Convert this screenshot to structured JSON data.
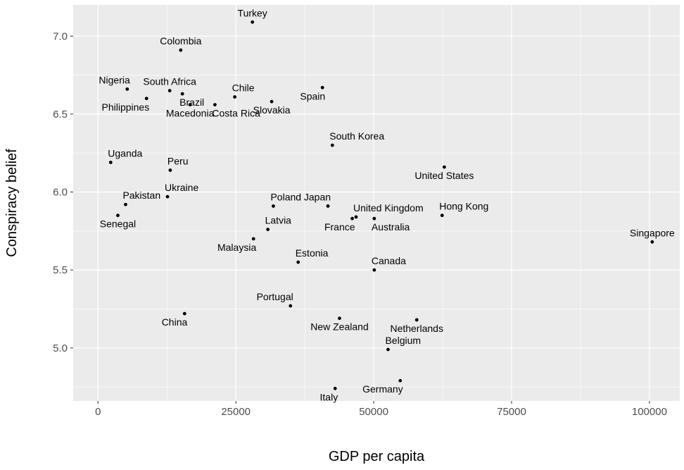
{
  "chart_data": {
    "type": "scatter",
    "title": "",
    "xlabel": "GDP per capita",
    "ylabel": "Conspiracy belief",
    "xlim": [
      -4500,
      105500
    ],
    "ylim": [
      4.66,
      7.2
    ],
    "x_ticks": [
      0,
      25000,
      50000,
      75000,
      100000
    ],
    "x_tick_labels": [
      "0",
      "25000",
      "50000",
      "75000",
      "100000"
    ],
    "y_ticks": [
      5.0,
      5.5,
      6.0,
      6.5,
      7.0
    ],
    "y_tick_labels": [
      "5.0",
      "5.5",
      "6.0",
      "6.5",
      "7.0"
    ],
    "grid": true,
    "background_color": "#ebebeb",
    "grid_color": "#ffffff",
    "point_color": "#000000",
    "points": [
      {
        "label": "Turkey",
        "x": 28000,
        "y": 7.09,
        "anchor": "above"
      },
      {
        "label": "Colombia",
        "x": 15000,
        "y": 6.91,
        "anchor": "above"
      },
      {
        "label": "Nigeria",
        "x": 5300,
        "y": 6.66,
        "anchor": "above-left"
      },
      {
        "label": "South Africa",
        "x": 13000,
        "y": 6.65,
        "anchor": "above"
      },
      {
        "label": "Brazil",
        "x": 15300,
        "y": 6.63,
        "anchor": "below-right"
      },
      {
        "label": "Philippines",
        "x": 8800,
        "y": 6.6,
        "anchor": "below-left"
      },
      {
        "label": "Macedonia",
        "x": 16700,
        "y": 6.56,
        "anchor": "below"
      },
      {
        "label": "Costa Rica",
        "x": 21200,
        "y": 6.56,
        "anchor": "below-right"
      },
      {
        "label": "Chile",
        "x": 24800,
        "y": 6.61,
        "anchor": "above-right"
      },
      {
        "label": "Slovakia",
        "x": 31500,
        "y": 6.58,
        "anchor": "below"
      },
      {
        "label": "Spain",
        "x": 40700,
        "y": 6.67,
        "anchor": "below-left"
      },
      {
        "label": "South Korea",
        "x": 42500,
        "y": 6.3,
        "anchor": "above-right"
      },
      {
        "label": "Uganda",
        "x": 2300,
        "y": 6.19,
        "anchor": "above-right"
      },
      {
        "label": "Peru",
        "x": 13100,
        "y": 6.14,
        "anchor": "above-right"
      },
      {
        "label": "United States",
        "x": 62800,
        "y": 6.16,
        "anchor": "below"
      },
      {
        "label": "Ukraine",
        "x": 12600,
        "y": 5.97,
        "anchor": "above-right"
      },
      {
        "label": "Pakistan",
        "x": 5000,
        "y": 5.92,
        "anchor": "above-right"
      },
      {
        "label": "Senegal",
        "x": 3600,
        "y": 5.85,
        "anchor": "below"
      },
      {
        "label": "Poland",
        "x": 31800,
        "y": 5.91,
        "anchor": "above-right"
      },
      {
        "label": "Japan",
        "x": 41700,
        "y": 5.91,
        "anchor": "above-left"
      },
      {
        "label": "United Kingdom",
        "x": 46800,
        "y": 5.84,
        "anchor": "above-right"
      },
      {
        "label": "France",
        "x": 46100,
        "y": 5.83,
        "anchor": "below-left"
      },
      {
        "label": "Australia",
        "x": 50100,
        "y": 5.83,
        "anchor": "below-right"
      },
      {
        "label": "Hong Kong",
        "x": 62400,
        "y": 5.85,
        "anchor": "above-right"
      },
      {
        "label": "Latvia",
        "x": 30800,
        "y": 5.76,
        "anchor": "above-right"
      },
      {
        "label": "Malaysia",
        "x": 28200,
        "y": 5.7,
        "anchor": "below-left"
      },
      {
        "label": "Singapore",
        "x": 100500,
        "y": 5.68,
        "anchor": "above"
      },
      {
        "label": "Estonia",
        "x": 36300,
        "y": 5.55,
        "anchor": "above-right"
      },
      {
        "label": "Canada",
        "x": 50100,
        "y": 5.5,
        "anchor": "above-right"
      },
      {
        "label": "Portugal",
        "x": 34900,
        "y": 5.27,
        "anchor": "above-left"
      },
      {
        "label": "China",
        "x": 15700,
        "y": 5.22,
        "anchor": "below-left"
      },
      {
        "label": "New Zealand",
        "x": 43800,
        "y": 5.19,
        "anchor": "below"
      },
      {
        "label": "Netherlands",
        "x": 57800,
        "y": 5.18,
        "anchor": "below"
      },
      {
        "label": "Belgium",
        "x": 52600,
        "y": 4.99,
        "anchor": "above-right"
      },
      {
        "label": "Germany",
        "x": 54800,
        "y": 4.79,
        "anchor": "below-left"
      },
      {
        "label": "Italy",
        "x": 43000,
        "y": 4.74,
        "anchor": "below-left"
      }
    ]
  }
}
